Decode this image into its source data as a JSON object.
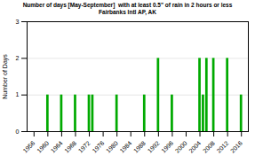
{
  "chart_data": {
    "type": "bar",
    "title": "Number of days [May-September]  with at least 0.5\" of rain in 2 hours or less",
    "subtitle": "Fairbanks Intl AP, AK",
    "ylabel": "Number of Days",
    "x": [
      1956,
      1957,
      1958,
      1959,
      1960,
      1961,
      1962,
      1963,
      1964,
      1965,
      1966,
      1967,
      1968,
      1969,
      1970,
      1971,
      1972,
      1973,
      1974,
      1975,
      1976,
      1977,
      1978,
      1979,
      1980,
      1981,
      1982,
      1983,
      1984,
      1985,
      1986,
      1987,
      1988,
      1989,
      1990,
      1991,
      1992,
      1993,
      1994,
      1995,
      1996,
      1997,
      1998,
      1999,
      2000,
      2001,
      2002,
      2003,
      2004,
      2005,
      2006,
      2007,
      2008,
      2009,
      2010,
      2011,
      2012,
      2013,
      2014,
      2015,
      2016
    ],
    "values": [
      0,
      0,
      0,
      0,
      1,
      0,
      0,
      0,
      1,
      0,
      0,
      0,
      1,
      0,
      0,
      0,
      1,
      1,
      0,
      0,
      0,
      0,
      0,
      0,
      1,
      0,
      0,
      0,
      0,
      0,
      0,
      0,
      1,
      0,
      0,
      0,
      2,
      0,
      0,
      0,
      1,
      0,
      0,
      0,
      0,
      0,
      0,
      0,
      2,
      1,
      2,
      0,
      2,
      0,
      0,
      0,
      2,
      0,
      0,
      0,
      1
    ],
    "color": "#00aa00",
    "xlim": [
      1954,
      2018
    ],
    "xticks": [
      1956,
      1960,
      1964,
      1968,
      1972,
      1976,
      1980,
      1984,
      1988,
      1992,
      1996,
      2000,
      2004,
      2008,
      2012,
      2016
    ],
    "ylim": [
      0,
      3
    ],
    "yticks": [
      0,
      1,
      2,
      3
    ],
    "grid": true
  }
}
